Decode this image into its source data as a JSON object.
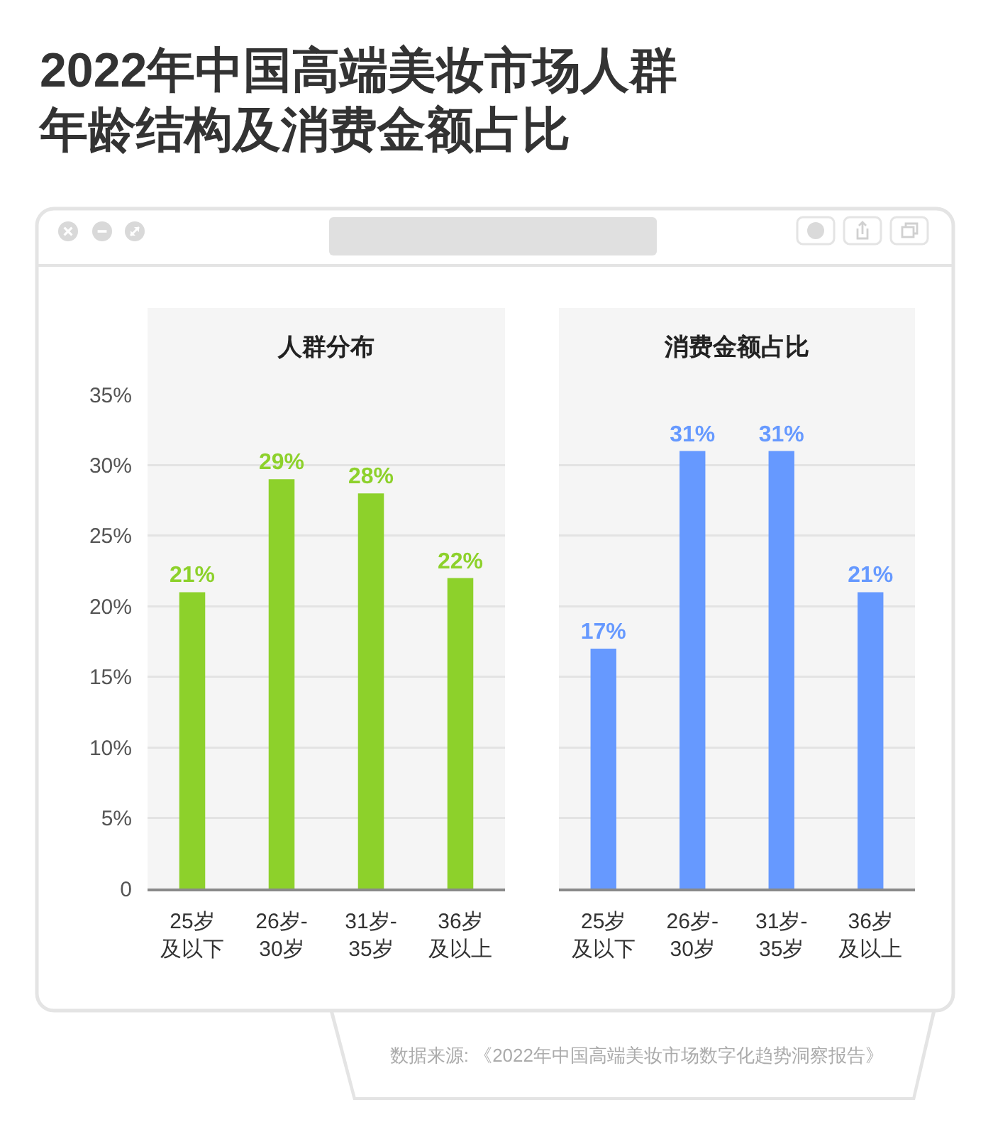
{
  "chart_data": [
    {
      "type": "other",
      "title": "2022年中国高端美妆市场人群年龄结构及消费金额占比",
      "annotations": [
        "数据来源: 《2022年中国高端美妆市场数字化趋势洞察报告》"
      ]
    },
    {
      "type": "bar",
      "title": "人群分布",
      "categories": [
        "25岁及以下",
        "26岁-30岁",
        "31岁-35岁",
        "36岁及以上"
      ],
      "values": [
        21,
        29,
        28,
        22
      ],
      "value_labels": [
        "21%",
        "29%",
        "28%",
        "22%"
      ],
      "color": "#8dd12b",
      "ylim": [
        0,
        35
      ],
      "yticks": [
        0,
        {
          "value": 5,
          "label": "5%"
        },
        {
          "value": 10,
          "label": "10%"
        },
        {
          "value": 15,
          "label": "15%"
        },
        {
          "value": 20,
          "label": "20%"
        },
        {
          "value": 25,
          "label": "25%"
        },
        {
          "value": 30,
          "label": "30%"
        },
        {
          "value": 35,
          "label": "35%"
        }
      ],
      "grid": "y"
    },
    {
      "type": "bar",
      "title": "消费金额占比",
      "categories": [
        "25岁及以下",
        "26岁-30岁",
        "31岁-35岁",
        "36岁及以上"
      ],
      "values": [
        17,
        31,
        31,
        21
      ],
      "value_labels": [
        "17%",
        "31%",
        "31%",
        "21%"
      ],
      "color": "#6699ff",
      "ylim": [
        0,
        35
      ],
      "yticks": [
        {
          "value": 0,
          "label": null
        },
        {
          "value": 5,
          "label": null
        },
        {
          "value": 10,
          "label": null
        },
        {
          "value": 15,
          "label": null
        },
        {
          "value": 20,
          "label": null
        },
        {
          "value": 25,
          "label": null
        },
        {
          "value": 30,
          "label": null
        },
        {
          "value": 35,
          "label": null
        }
      ],
      "grid": "y"
    }
  ]
}
